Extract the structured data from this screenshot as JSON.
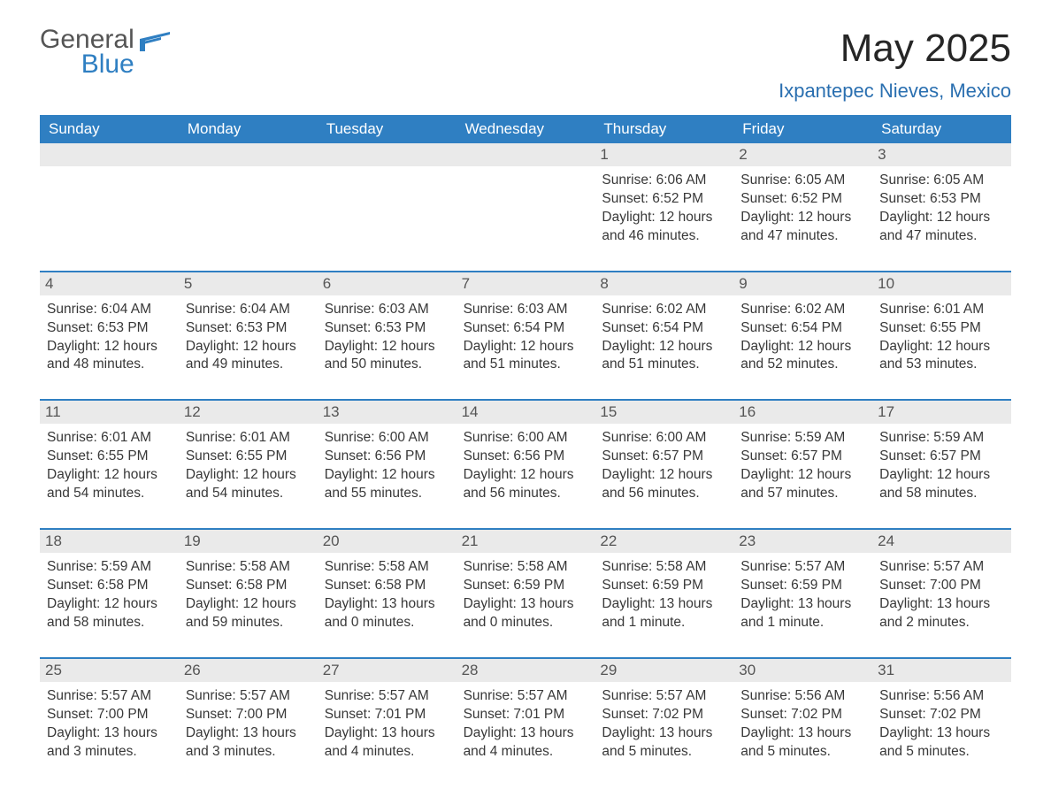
{
  "brand": {
    "part1": "General",
    "part2": "Blue",
    "color1": "#555555",
    "color2": "#2f7fc2"
  },
  "title": "May 2025",
  "location": "Ixpantepec Nieves, Mexico",
  "colors": {
    "header_bg": "#2f7fc2",
    "header_text": "#ffffff",
    "daynum_bg": "#eaeaea",
    "rule": "#2f7fc2",
    "text": "#383838"
  },
  "day_labels": [
    "Sunday",
    "Monday",
    "Tuesday",
    "Wednesday",
    "Thursday",
    "Friday",
    "Saturday"
  ],
  "weeks": [
    [
      {
        "n": "",
        "empty": true
      },
      {
        "n": "",
        "empty": true
      },
      {
        "n": "",
        "empty": true
      },
      {
        "n": "",
        "empty": true
      },
      {
        "n": "1",
        "sr": "Sunrise: 6:06 AM",
        "ss": "Sunset: 6:52 PM",
        "d1": "Daylight: 12 hours",
        "d2": "and 46 minutes."
      },
      {
        "n": "2",
        "sr": "Sunrise: 6:05 AM",
        "ss": "Sunset: 6:52 PM",
        "d1": "Daylight: 12 hours",
        "d2": "and 47 minutes."
      },
      {
        "n": "3",
        "sr": "Sunrise: 6:05 AM",
        "ss": "Sunset: 6:53 PM",
        "d1": "Daylight: 12 hours",
        "d2": "and 47 minutes."
      }
    ],
    [
      {
        "n": "4",
        "sr": "Sunrise: 6:04 AM",
        "ss": "Sunset: 6:53 PM",
        "d1": "Daylight: 12 hours",
        "d2": "and 48 minutes."
      },
      {
        "n": "5",
        "sr": "Sunrise: 6:04 AM",
        "ss": "Sunset: 6:53 PM",
        "d1": "Daylight: 12 hours",
        "d2": "and 49 minutes."
      },
      {
        "n": "6",
        "sr": "Sunrise: 6:03 AM",
        "ss": "Sunset: 6:53 PM",
        "d1": "Daylight: 12 hours",
        "d2": "and 50 minutes."
      },
      {
        "n": "7",
        "sr": "Sunrise: 6:03 AM",
        "ss": "Sunset: 6:54 PM",
        "d1": "Daylight: 12 hours",
        "d2": "and 51 minutes."
      },
      {
        "n": "8",
        "sr": "Sunrise: 6:02 AM",
        "ss": "Sunset: 6:54 PM",
        "d1": "Daylight: 12 hours",
        "d2": "and 51 minutes."
      },
      {
        "n": "9",
        "sr": "Sunrise: 6:02 AM",
        "ss": "Sunset: 6:54 PM",
        "d1": "Daylight: 12 hours",
        "d2": "and 52 minutes."
      },
      {
        "n": "10",
        "sr": "Sunrise: 6:01 AM",
        "ss": "Sunset: 6:55 PM",
        "d1": "Daylight: 12 hours",
        "d2": "and 53 minutes."
      }
    ],
    [
      {
        "n": "11",
        "sr": "Sunrise: 6:01 AM",
        "ss": "Sunset: 6:55 PM",
        "d1": "Daylight: 12 hours",
        "d2": "and 54 minutes."
      },
      {
        "n": "12",
        "sr": "Sunrise: 6:01 AM",
        "ss": "Sunset: 6:55 PM",
        "d1": "Daylight: 12 hours",
        "d2": "and 54 minutes."
      },
      {
        "n": "13",
        "sr": "Sunrise: 6:00 AM",
        "ss": "Sunset: 6:56 PM",
        "d1": "Daylight: 12 hours",
        "d2": "and 55 minutes."
      },
      {
        "n": "14",
        "sr": "Sunrise: 6:00 AM",
        "ss": "Sunset: 6:56 PM",
        "d1": "Daylight: 12 hours",
        "d2": "and 56 minutes."
      },
      {
        "n": "15",
        "sr": "Sunrise: 6:00 AM",
        "ss": "Sunset: 6:57 PM",
        "d1": "Daylight: 12 hours",
        "d2": "and 56 minutes."
      },
      {
        "n": "16",
        "sr": "Sunrise: 5:59 AM",
        "ss": "Sunset: 6:57 PM",
        "d1": "Daylight: 12 hours",
        "d2": "and 57 minutes."
      },
      {
        "n": "17",
        "sr": "Sunrise: 5:59 AM",
        "ss": "Sunset: 6:57 PM",
        "d1": "Daylight: 12 hours",
        "d2": "and 58 minutes."
      }
    ],
    [
      {
        "n": "18",
        "sr": "Sunrise: 5:59 AM",
        "ss": "Sunset: 6:58 PM",
        "d1": "Daylight: 12 hours",
        "d2": "and 58 minutes."
      },
      {
        "n": "19",
        "sr": "Sunrise: 5:58 AM",
        "ss": "Sunset: 6:58 PM",
        "d1": "Daylight: 12 hours",
        "d2": "and 59 minutes."
      },
      {
        "n": "20",
        "sr": "Sunrise: 5:58 AM",
        "ss": "Sunset: 6:58 PM",
        "d1": "Daylight: 13 hours",
        "d2": "and 0 minutes."
      },
      {
        "n": "21",
        "sr": "Sunrise: 5:58 AM",
        "ss": "Sunset: 6:59 PM",
        "d1": "Daylight: 13 hours",
        "d2": "and 0 minutes."
      },
      {
        "n": "22",
        "sr": "Sunrise: 5:58 AM",
        "ss": "Sunset: 6:59 PM",
        "d1": "Daylight: 13 hours",
        "d2": "and 1 minute."
      },
      {
        "n": "23",
        "sr": "Sunrise: 5:57 AM",
        "ss": "Sunset: 6:59 PM",
        "d1": "Daylight: 13 hours",
        "d2": "and 1 minute."
      },
      {
        "n": "24",
        "sr": "Sunrise: 5:57 AM",
        "ss": "Sunset: 7:00 PM",
        "d1": "Daylight: 13 hours",
        "d2": "and 2 minutes."
      }
    ],
    [
      {
        "n": "25",
        "sr": "Sunrise: 5:57 AM",
        "ss": "Sunset: 7:00 PM",
        "d1": "Daylight: 13 hours",
        "d2": "and 3 minutes."
      },
      {
        "n": "26",
        "sr": "Sunrise: 5:57 AM",
        "ss": "Sunset: 7:00 PM",
        "d1": "Daylight: 13 hours",
        "d2": "and 3 minutes."
      },
      {
        "n": "27",
        "sr": "Sunrise: 5:57 AM",
        "ss": "Sunset: 7:01 PM",
        "d1": "Daylight: 13 hours",
        "d2": "and 4 minutes."
      },
      {
        "n": "28",
        "sr": "Sunrise: 5:57 AM",
        "ss": "Sunset: 7:01 PM",
        "d1": "Daylight: 13 hours",
        "d2": "and 4 minutes."
      },
      {
        "n": "29",
        "sr": "Sunrise: 5:57 AM",
        "ss": "Sunset: 7:02 PM",
        "d1": "Daylight: 13 hours",
        "d2": "and 5 minutes."
      },
      {
        "n": "30",
        "sr": "Sunrise: 5:56 AM",
        "ss": "Sunset: 7:02 PM",
        "d1": "Daylight: 13 hours",
        "d2": "and 5 minutes."
      },
      {
        "n": "31",
        "sr": "Sunrise: 5:56 AM",
        "ss": "Sunset: 7:02 PM",
        "d1": "Daylight: 13 hours",
        "d2": "and 5 minutes."
      }
    ]
  ]
}
